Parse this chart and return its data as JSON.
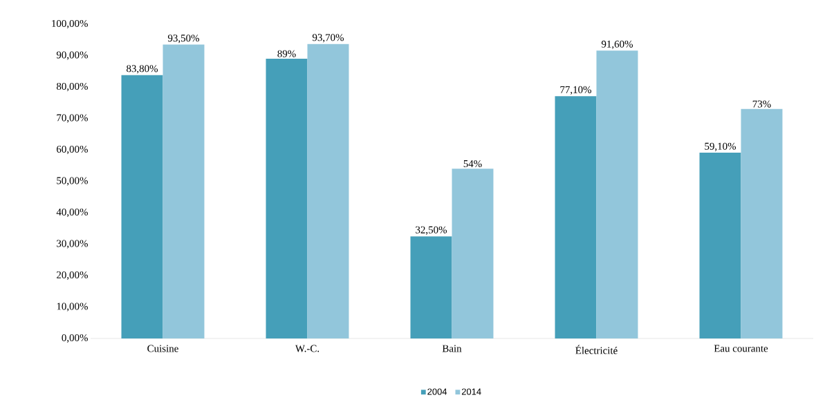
{
  "chart_data": {
    "type": "bar",
    "categories": [
      "Cuisine",
      "W.-C.",
      "Bain",
      "Électricité",
      "Eau courante"
    ],
    "series": [
      {
        "name": "2004",
        "color": "#459fb9",
        "values": [
          83.8,
          89,
          32.5,
          77.1,
          59.1
        ],
        "value_labels": [
          "83,80%",
          "89%",
          "32,50%",
          "77,10%",
          "59,10%"
        ]
      },
      {
        "name": "2014",
        "color": "#92c6db",
        "values": [
          93.5,
          93.7,
          54,
          91.6,
          73
        ],
        "value_labels": [
          "93,50%",
          "93,70%",
          "54%",
          "91,60%",
          "73%"
        ]
      }
    ],
    "ylim": [
      0,
      100
    ],
    "yticks": [
      {
        "value": 0,
        "label": "0,00%"
      },
      {
        "value": 10,
        "label": "10,00%"
      },
      {
        "value": 20,
        "label": "20,00%"
      },
      {
        "value": 30,
        "label": "30,00%"
      },
      {
        "value": 40,
        "label": "40,00%"
      },
      {
        "value": 50,
        "label": "50,00%"
      },
      {
        "value": 60,
        "label": "60,00%"
      },
      {
        "value": 70,
        "label": "70,00%"
      },
      {
        "value": 80,
        "label": "80,00%"
      },
      {
        "value": 90,
        "label": "90,00%"
      },
      {
        "value": 100,
        "label": "100,00%"
      }
    ],
    "grid": false,
    "legend": "bottom"
  }
}
